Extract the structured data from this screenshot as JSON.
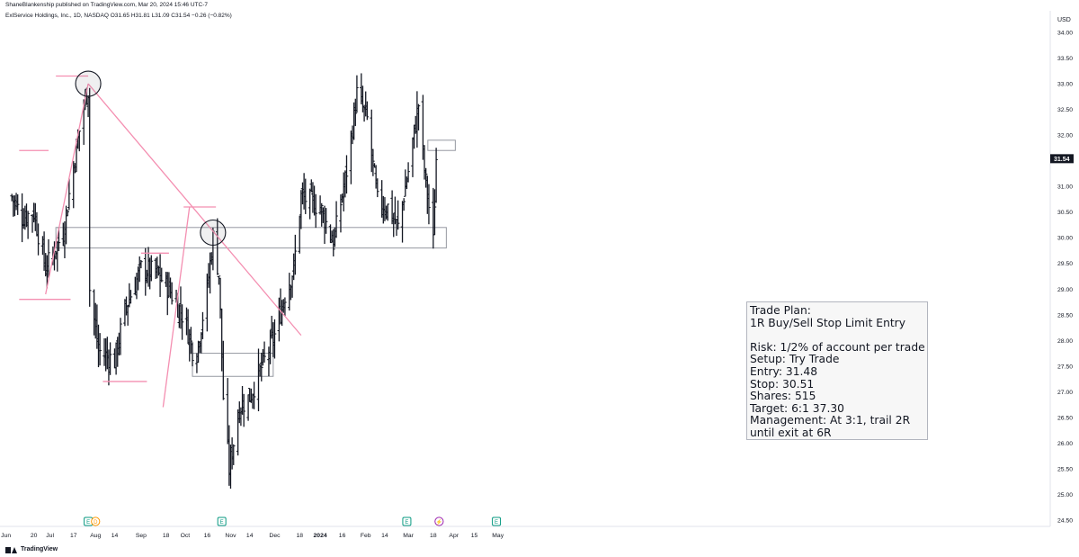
{
  "header": {
    "published_line": "ShaneBlankenship published on TradingView.com, Mar 20, 2024 15:46 UTC-7"
  },
  "legend": {
    "symbol": "ExlService Holdings, Inc., 1D, NASDAQ",
    "ohlc": "O31.65 H31.81 L31.09 C31.54 −0.26 (−0.82%)"
  },
  "footer": {
    "brand": "TradingView"
  },
  "trade_plan": {
    "lines": [
      "Trade Plan:",
      "1R Buy/Sell Stop Limit Entry",
      "",
      "Risk: 1/2% of account per trade",
      "Setup: Try Trade",
      "Entry: 31.48",
      "Stop: 30.51",
      "Shares: 515",
      "Target: 6:1 37.30",
      "Management: At 3:1, trail 2R",
      "until exit at 6R"
    ]
  },
  "colors": {
    "bars": "#131722",
    "trendline": "#f48fb1",
    "box": "#9598a1",
    "event_earnings": "#089981",
    "event_dividend": "#ff9800",
    "event_split": "#9c27b0"
  },
  "chart_data": {
    "type": "ohlc-bar",
    "currency": "USD",
    "last_price_label": "31.54",
    "ylim": [
      24.5,
      34.0
    ],
    "y_ticks": [
      "34.00",
      "33.50",
      "33.00",
      "32.50",
      "32.00",
      "31.50",
      "31.00",
      "30.50",
      "30.00",
      "29.50",
      "29.00",
      "28.50",
      "28.00",
      "27.50",
      "27.00",
      "26.50",
      "26.00",
      "25.50",
      "25.00",
      "24.50"
    ],
    "x_ticks": [
      "Jun",
      "20",
      "Jul",
      "17",
      "Aug",
      "14",
      "Sep",
      "18",
      "Oct",
      "16",
      "Nov",
      "14",
      "Dec",
      "18",
      "2024",
      "16",
      "Feb",
      "14",
      "Mar",
      "18",
      "Apr",
      "15",
      "May"
    ],
    "bold_x_ticks": [
      "2024"
    ],
    "events": [
      {
        "type": "earnings",
        "label": "E",
        "near": "Jul 27"
      },
      {
        "type": "dividend",
        "label": "D",
        "near": "Aug 1"
      },
      {
        "type": "earnings",
        "label": "E",
        "near": "Oct 26"
      },
      {
        "type": "earnings",
        "label": "E",
        "near": "Feb 29"
      },
      {
        "type": "split",
        "label": "⚡",
        "near": "Mar 22"
      },
      {
        "type": "earnings",
        "label": "E",
        "near": "Apr 30"
      }
    ],
    "approx_close_path": [
      [
        "Jun 5",
        30.8
      ],
      [
        "Jun 12",
        30.4
      ],
      [
        "Jun 20",
        30.5
      ],
      [
        "Jun 28",
        29.4
      ],
      [
        "Jul 10",
        30.1
      ],
      [
        "Jul 17",
        31.4
      ],
      [
        "Jul 24",
        32.6
      ],
      [
        "Jul 27",
        32.9
      ],
      [
        "Jul 28",
        29.0
      ],
      [
        "Aug 3",
        27.8
      ],
      [
        "Aug 14",
        27.6
      ],
      [
        "Aug 21",
        28.6
      ],
      [
        "Sep 1",
        29.4
      ],
      [
        "Sep 12",
        29.3
      ],
      [
        "Sep 20",
        29.0
      ],
      [
        "Oct 1",
        28.4
      ],
      [
        "Oct 8",
        27.6
      ],
      [
        "Oct 16",
        29.0
      ],
      [
        "Oct 20",
        30.0
      ],
      [
        "Oct 24",
        29.3
      ],
      [
        "Oct 27",
        26.9
      ],
      [
        "Oct 31",
        25.5
      ],
      [
        "Nov 7",
        26.7
      ],
      [
        "Nov 14",
        26.9
      ],
      [
        "Nov 21",
        27.4
      ],
      [
        "Dec 1",
        28.1
      ],
      [
        "Dec 8",
        28.9
      ],
      [
        "Dec 14",
        29.4
      ],
      [
        "Dec 19",
        30.8
      ],
      [
        "Jan 1",
        30.6
      ],
      [
        "Jan 10",
        29.9
      ],
      [
        "Jan 19",
        31.3
      ],
      [
        "Jan 26",
        32.8
      ],
      [
        "Feb 2",
        32.3
      ],
      [
        "Feb 9",
        30.7
      ],
      [
        "Feb 16",
        30.6
      ],
      [
        "Feb 23",
        30.2
      ],
      [
        "Mar 1",
        31.3
      ],
      [
        "Mar 8",
        32.6
      ],
      [
        "Mar 12",
        31.3
      ],
      [
        "Mar 18",
        29.9
      ],
      [
        "Mar 20",
        31.54
      ]
    ],
    "annotations": {
      "downtrend_line": {
        "from": [
          "Jul 27",
          33.0
        ],
        "to": [
          "Dec 19",
          28.1
        ]
      },
      "uptrend_line_1": {
        "from": [
          "Jun 28",
          28.9
        ],
        "to": [
          "Jul 27",
          33.0
        ]
      },
      "uptrend_line_2": {
        "from": [
          "Sep 16",
          26.7
        ],
        "to": [
          "Oct 4",
          30.6
        ]
      },
      "circles": [
        [
          "Jul 27",
          33.0
        ],
        [
          "Oct 20",
          30.1
        ]
      ],
      "support_zone_box": [
        30.2,
        29.8
      ],
      "lower_zone_box": [
        27.75,
        27.3
      ],
      "resistance_box_right": [
        31.9,
        31.7
      ],
      "horizontal_levels": [
        33.15,
        31.7,
        30.6,
        29.7,
        28.8,
        27.2,
        30.7
      ]
    }
  }
}
